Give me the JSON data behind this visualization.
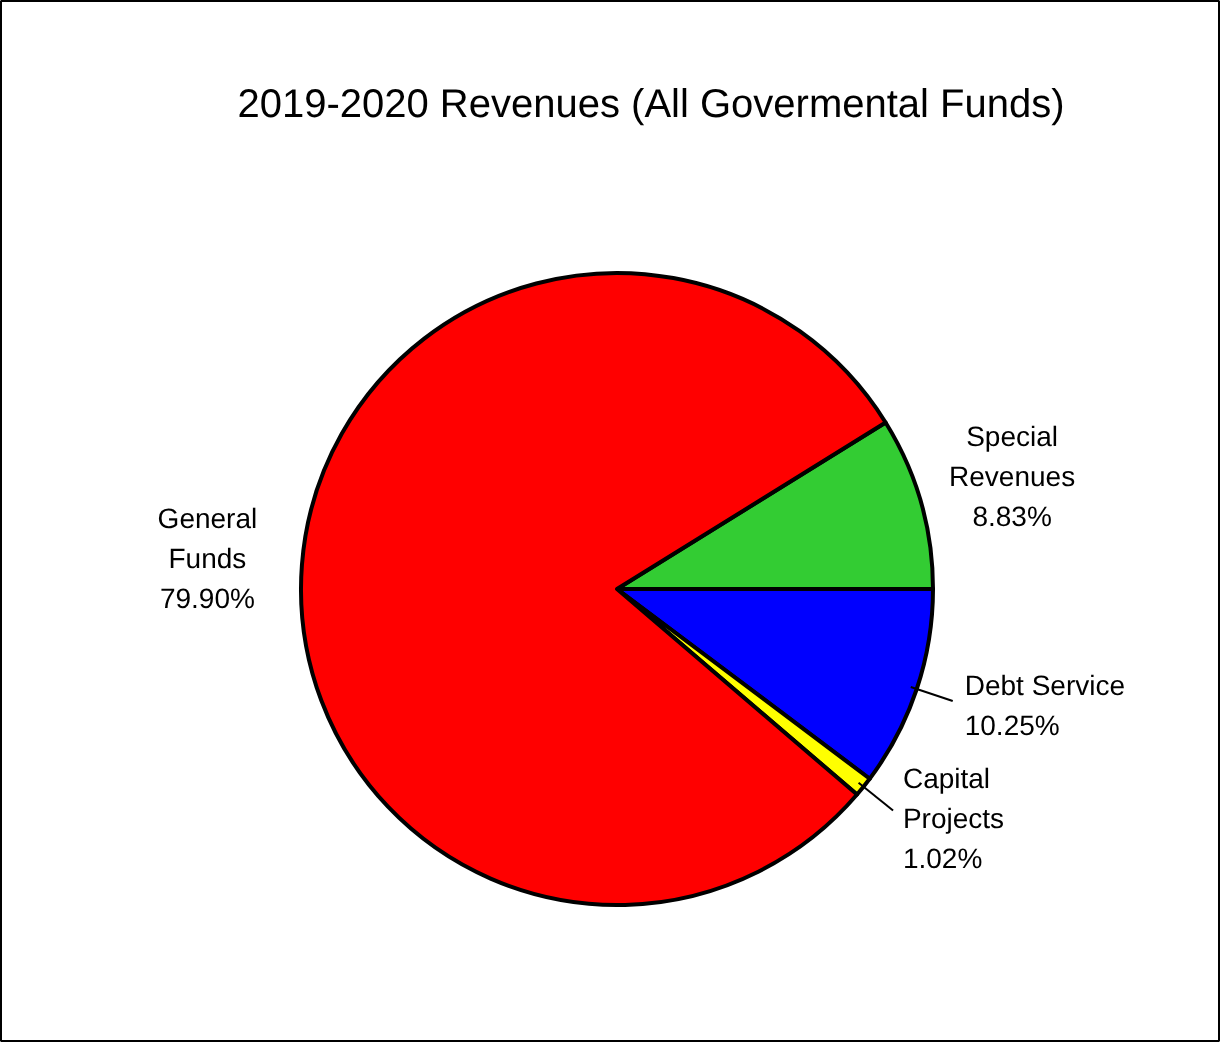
{
  "chart_data": {
    "type": "pie",
    "title": "2019-2020 Revenues (All Govermental Funds)",
    "categories": [
      "Special\nRevenues",
      "Debt Service",
      "Capital\nProjects",
      "General\nFunds"
    ],
    "values": [
      8.83,
      10.25,
      1.02,
      79.9
    ],
    "colors": [
      "#33cc33",
      "#0000ff",
      "#ffff00",
      "#ff0000"
    ],
    "value_labels": [
      "8.83%",
      "10.25%",
      "1.02%",
      "79.90%"
    ]
  }
}
